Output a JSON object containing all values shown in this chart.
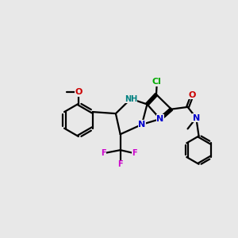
{
  "bg_color": "#e8e8e8",
  "bond_color": "#000000",
  "bond_width": 1.6,
  "atom_colors": {
    "N": "#0000cc",
    "O": "#cc0000",
    "F": "#cc00cc",
    "Cl": "#00aa00",
    "NH": "#008080",
    "C": "#000000"
  },
  "font_size": 8.0,
  "font_size_small": 7.0,
  "figsize": [
    3.0,
    3.0
  ],
  "dpi": 100
}
